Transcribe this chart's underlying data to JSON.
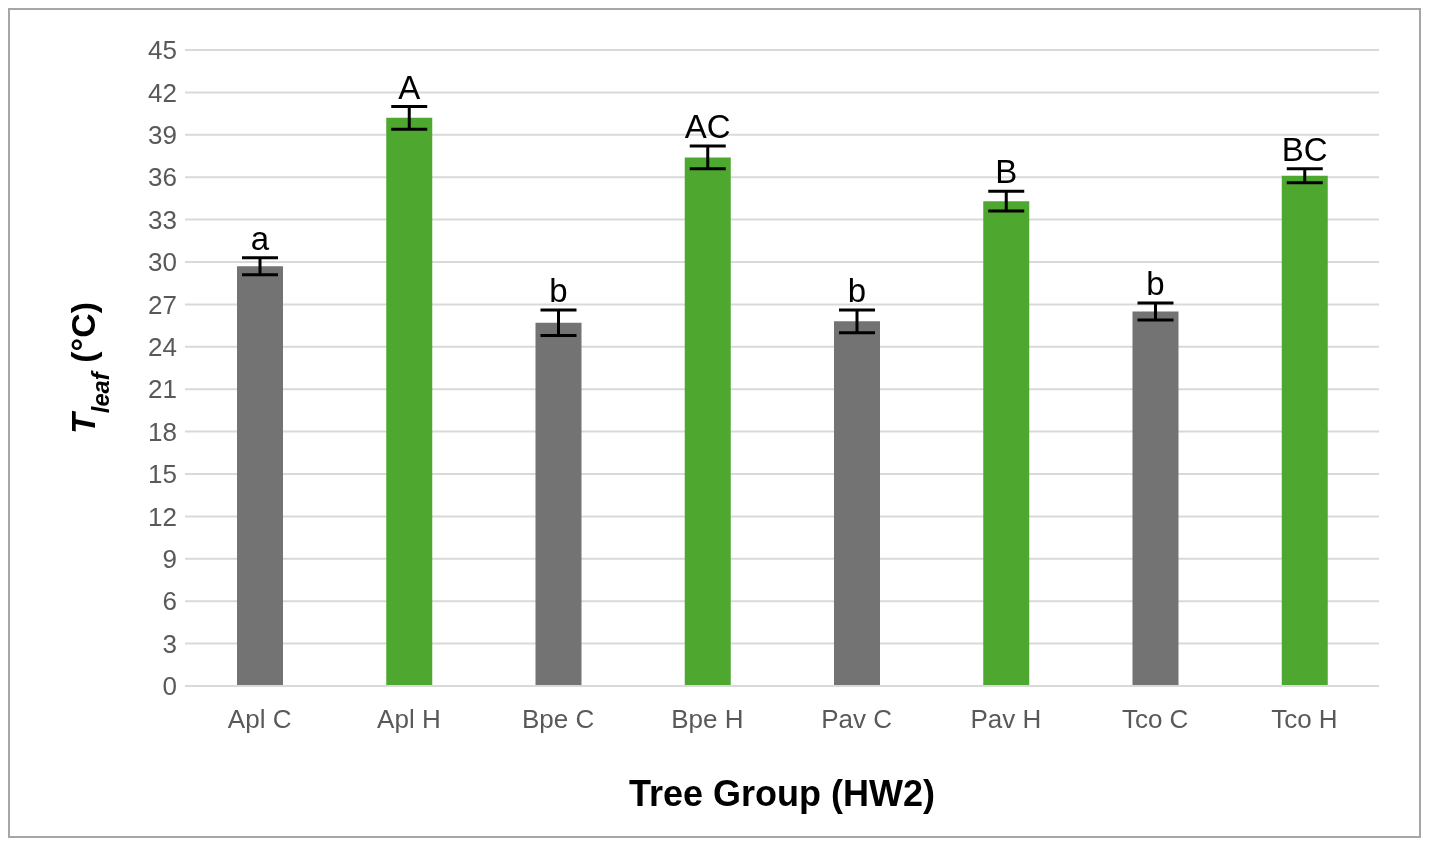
{
  "chart_data": {
    "type": "bar",
    "xlabel": "Tree Group (HW2)",
    "ylabel": "T$_{leaf}$ (°C)",
    "categories": [
      "Apl C",
      "Apl H",
      "Bpe C",
      "Bpe H",
      "Pav C",
      "Pav H",
      "Tco C",
      "Tco H"
    ],
    "values": [
      29.7,
      40.2,
      25.7,
      37.4,
      25.8,
      34.3,
      26.5,
      36.1
    ],
    "errors": [
      0.6,
      0.8,
      0.9,
      0.8,
      0.8,
      0.7,
      0.6,
      0.5
    ],
    "colors": [
      "#737373",
      "#4ea72e",
      "#737373",
      "#4ea72e",
      "#737373",
      "#4ea72e",
      "#737373",
      "#4ea72e"
    ],
    "ylim": [
      0,
      45
    ],
    "yticks": [
      0,
      3,
      6,
      9,
      12,
      15,
      18,
      21,
      24,
      27,
      30,
      33,
      36,
      39,
      42,
      45
    ],
    "grid": "y",
    "annotations": [
      {
        "text": "a",
        "x": "Apl C",
        "y": 29.7
      },
      {
        "text": "A",
        "x": "Apl H",
        "y": 40.2
      },
      {
        "text": "b",
        "x": "Bpe C",
        "y": 25.7
      },
      {
        "text": "AC",
        "x": "Bpe H",
        "y": 37.4
      },
      {
        "text": "b",
        "x": "Pav C",
        "y": 25.8
      },
      {
        "text": "B",
        "x": "Pav H",
        "y": 34.3
      },
      {
        "text": "b",
        "x": "Tco C",
        "y": 26.5
      },
      {
        "text": "BC",
        "x": "Tco H",
        "y": 36.1
      }
    ]
  }
}
